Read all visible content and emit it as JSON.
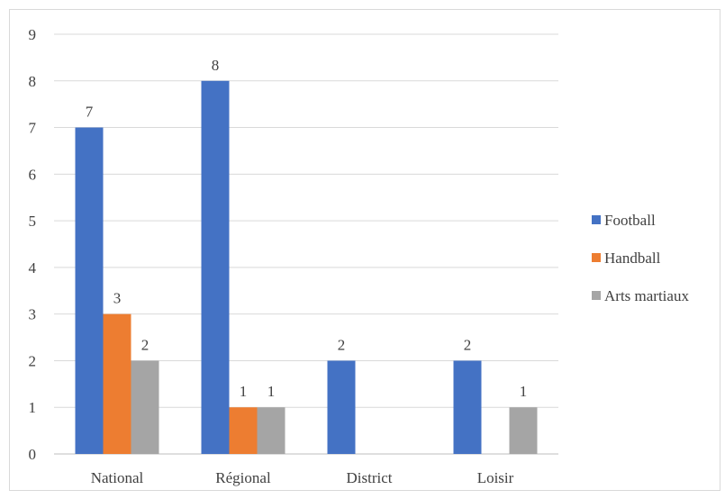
{
  "chart_data": {
    "type": "bar",
    "categories": [
      "National",
      "Régional",
      "District",
      "Loisir"
    ],
    "series": [
      {
        "name": "Football",
        "values": [
          7,
          8,
          2,
          2
        ],
        "color": "#4472c4"
      },
      {
        "name": "Handball",
        "values": [
          3,
          1,
          null,
          null
        ],
        "color": "#ed7d31"
      },
      {
        "name": "Arts martiaux",
        "values": [
          2,
          1,
          null,
          1
        ],
        "color": "#a5a5a5"
      }
    ],
    "y_ticks": [
      "0",
      "1",
      "2",
      "3",
      "4",
      "5",
      "6",
      "7",
      "8",
      "9"
    ],
    "ylim": [
      0,
      9
    ],
    "grid": true,
    "legend_position": "right",
    "data_labels": true
  }
}
